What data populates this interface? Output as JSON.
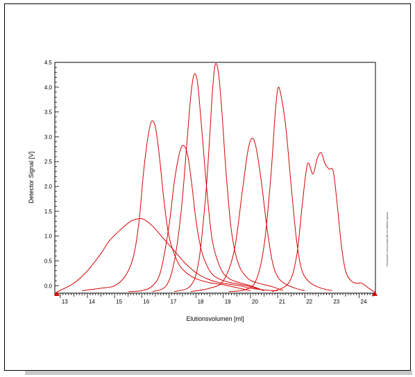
{
  "chart_data": {
    "type": "line",
    "xlabel": "Elutionsvolumen [ml]",
    "ylabel": "Detector Signal [V]",
    "xlim": [
      12.8,
      24.6
    ],
    "ylim": [
      -0.15,
      4.5
    ],
    "x_ticks": [
      "13",
      "14",
      "15",
      "16",
      "17",
      "18",
      "19",
      "20",
      "21",
      "22",
      "23",
      "24"
    ],
    "y_ticks": [
      "0.0",
      "0.5",
      "1.0",
      "1.5",
      "2.0",
      "2.5",
      "3.0",
      "3.5",
      "4.0",
      "4.5"
    ],
    "grid": false,
    "line_color": "#d40000",
    "side_note": "PSS WinGPC Unichrom Build 6081 PC PRIDOS1 Salenser",
    "series": [
      {
        "x": [
          12.9,
          13.5,
          14.0,
          14.5,
          14.8,
          15.2,
          15.6,
          15.9,
          16.1,
          16.4,
          16.8,
          17.2,
          17.6,
          18.0,
          18.4,
          18.8,
          19.2,
          19.6,
          20.0,
          20.6,
          21.0
        ],
        "values": [
          -0.12,
          0.05,
          0.3,
          0.65,
          0.9,
          1.12,
          1.3,
          1.35,
          1.33,
          1.2,
          0.95,
          0.7,
          0.45,
          0.26,
          0.14,
          0.07,
          0.03,
          0.0,
          -0.05,
          -0.09,
          -0.1
        ]
      },
      {
        "x": [
          13.8,
          14.5,
          15.0,
          15.4,
          15.7,
          15.9,
          16.05,
          16.2,
          16.35,
          16.5,
          16.65,
          16.8,
          17.0,
          17.3,
          17.6,
          18.0,
          18.5,
          19.0,
          19.5,
          20.0
        ],
        "values": [
          -0.1,
          -0.05,
          0.0,
          0.2,
          0.6,
          1.3,
          2.2,
          2.9,
          3.3,
          3.2,
          2.6,
          1.8,
          1.0,
          0.5,
          0.28,
          0.14,
          0.06,
          0.02,
          -0.04,
          -0.1
        ]
      },
      {
        "x": [
          15.5,
          16.0,
          16.4,
          16.7,
          17.0,
          17.2,
          17.4,
          17.55,
          17.7,
          17.85,
          18.0,
          18.2,
          18.5,
          18.8,
          19.2,
          19.6,
          20.0,
          20.5
        ],
        "values": [
          -0.12,
          -0.1,
          0.0,
          0.3,
          1.2,
          2.1,
          2.7,
          2.82,
          2.6,
          2.0,
          1.3,
          0.7,
          0.3,
          0.15,
          0.07,
          0.03,
          -0.02,
          -0.1
        ]
      },
      {
        "x": [
          16.4,
          16.9,
          17.2,
          17.45,
          17.65,
          17.8,
          17.92,
          18.05,
          18.2,
          18.4,
          18.6,
          18.9,
          19.2,
          19.6,
          20.0,
          20.5
        ],
        "values": [
          -0.12,
          0.0,
          0.5,
          1.5,
          2.8,
          3.8,
          4.25,
          4.1,
          3.2,
          1.9,
          0.9,
          0.35,
          0.15,
          0.06,
          0.0,
          -0.1
        ]
      },
      {
        "x": [
          17.2,
          17.8,
          18.1,
          18.35,
          18.5,
          18.6,
          18.7,
          18.82,
          18.95,
          19.1,
          19.3,
          19.55,
          19.9,
          20.3,
          20.8,
          21.2
        ],
        "values": [
          -0.12,
          0.0,
          0.5,
          1.8,
          3.0,
          3.9,
          4.45,
          4.3,
          3.5,
          2.3,
          1.1,
          0.45,
          0.15,
          0.05,
          -0.02,
          -0.1
        ]
      },
      {
        "x": [
          17.8,
          18.5,
          19.0,
          19.4,
          19.7,
          19.9,
          20.05,
          20.2,
          20.4,
          20.6,
          20.8,
          21.0,
          21.3,
          21.7,
          22.0
        ],
        "values": [
          -0.12,
          -0.05,
          0.1,
          0.7,
          1.9,
          2.7,
          2.97,
          2.8,
          2.1,
          1.2,
          0.5,
          0.18,
          0.03,
          -0.06,
          -0.1
        ]
      },
      {
        "x": [
          19.2,
          19.8,
          20.2,
          20.5,
          20.75,
          20.9,
          21.0,
          21.1,
          21.3,
          21.5,
          21.7,
          21.9,
          22.2,
          22.6,
          23.0
        ],
        "values": [
          -0.12,
          -0.08,
          0.1,
          0.8,
          2.2,
          3.4,
          3.95,
          3.9,
          3.2,
          2.0,
          0.9,
          0.3,
          0.06,
          -0.05,
          -0.1
        ]
      },
      {
        "x": [
          20.8,
          21.4,
          21.7,
          21.9,
          22.1,
          22.3,
          22.45,
          22.6,
          22.75,
          22.9,
          23.05,
          23.2,
          23.35,
          23.5,
          23.7,
          23.9,
          24.1,
          24.35,
          24.55
        ],
        "values": [
          -0.12,
          0.05,
          0.6,
          1.6,
          2.45,
          2.25,
          2.55,
          2.68,
          2.45,
          2.35,
          2.3,
          1.6,
          0.8,
          0.3,
          0.1,
          0.05,
          0.05,
          -0.05,
          -0.12
        ]
      }
    ]
  }
}
